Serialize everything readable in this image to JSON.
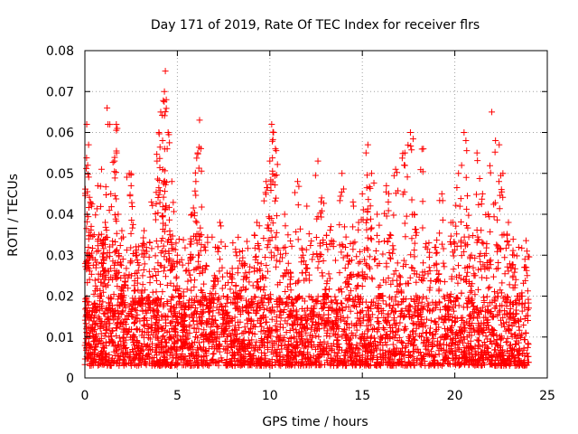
{
  "chart_data": {
    "type": "scatter",
    "title": "Day 171 of 2019, Rate Of TEC Index for receiver flrs",
    "xlabel": "GPS time / hours",
    "ylabel": "ROTI / TECUs",
    "xlim": [
      0,
      25
    ],
    "ylim": [
      0,
      0.08
    ],
    "xticks": [
      0,
      5,
      10,
      15,
      20,
      25
    ],
    "xtick_labels": [
      "0",
      "5",
      "10",
      "15",
      "20",
      "25"
    ],
    "yticks": [
      0,
      0.01,
      0.02,
      0.03,
      0.04,
      0.05,
      0.06,
      0.07,
      0.08
    ],
    "ytick_labels": [
      "0",
      "0.01",
      "0.02",
      "0.03",
      "0.04",
      "0.05",
      "0.06",
      "0.07",
      "0.08"
    ],
    "grid": true,
    "marker": "+",
    "color": "#ff0000",
    "series": [
      {
        "name": "ROTI",
        "points": [
          [
            0.05,
            0.015
          ],
          [
            0.1,
            0.062
          ],
          [
            0.15,
            0.052
          ],
          [
            0.2,
            0.057
          ],
          [
            0.25,
            0.03
          ],
          [
            0.3,
            0.043
          ],
          [
            0.4,
            0.012
          ],
          [
            0.5,
            0.035
          ],
          [
            0.6,
            0.008
          ],
          [
            0.7,
            0.047
          ],
          [
            0.8,
            0.02
          ],
          [
            0.9,
            0.051
          ],
          [
            1.0,
            0.028
          ],
          [
            1.1,
            0.038
          ],
          [
            1.2,
            0.066
          ],
          [
            1.25,
            0.062
          ],
          [
            1.3,
            0.01
          ],
          [
            1.4,
            0.045
          ],
          [
            1.5,
            0.015
          ],
          [
            1.6,
            0.053
          ],
          [
            1.7,
            0.062
          ],
          [
            1.75,
            0.061
          ],
          [
            1.8,
            0.04
          ],
          [
            1.9,
            0.02
          ],
          [
            2.0,
            0.036
          ],
          [
            2.1,
            0.012
          ],
          [
            2.2,
            0.025
          ],
          [
            2.4,
            0.05
          ],
          [
            2.5,
            0.047
          ],
          [
            2.6,
            0.01
          ],
          [
            2.8,
            0.03
          ],
          [
            3.0,
            0.018
          ],
          [
            3.2,
            0.036
          ],
          [
            3.4,
            0.008
          ],
          [
            3.6,
            0.043
          ],
          [
            3.8,
            0.015
          ],
          [
            3.9,
            0.053
          ],
          [
            4.0,
            0.06
          ],
          [
            4.1,
            0.065
          ],
          [
            4.2,
            0.058
          ],
          [
            4.3,
            0.07
          ],
          [
            4.35,
            0.075
          ],
          [
            4.4,
            0.068
          ],
          [
            4.5,
            0.06
          ],
          [
            4.6,
            0.035
          ],
          [
            4.7,
            0.048
          ],
          [
            4.8,
            0.012
          ],
          [
            5.0,
            0.03
          ],
          [
            5.2,
            0.02
          ],
          [
            5.4,
            0.008
          ],
          [
            5.6,
            0.028
          ],
          [
            5.8,
            0.04
          ],
          [
            6.0,
            0.048
          ],
          [
            6.1,
            0.055
          ],
          [
            6.2,
            0.063
          ],
          [
            6.3,
            0.015
          ],
          [
            6.5,
            0.032
          ],
          [
            6.7,
            0.01
          ],
          [
            7.0,
            0.025
          ],
          [
            7.3,
            0.038
          ],
          [
            7.6,
            0.012
          ],
          [
            8.0,
            0.033
          ],
          [
            8.3,
            0.02
          ],
          [
            8.6,
            0.028
          ],
          [
            9.0,
            0.014
          ],
          [
            9.3,
            0.038
          ],
          [
            9.6,
            0.025
          ],
          [
            9.8,
            0.048
          ],
          [
            10.0,
            0.053
          ],
          [
            10.1,
            0.062
          ],
          [
            10.2,
            0.06
          ],
          [
            10.3,
            0.056
          ],
          [
            10.5,
            0.018
          ],
          [
            10.8,
            0.04
          ],
          [
            11.0,
            0.028
          ],
          [
            11.3,
            0.01
          ],
          [
            11.5,
            0.048
          ],
          [
            11.8,
            0.03
          ],
          [
            12.0,
            0.042
          ],
          [
            12.3,
            0.015
          ],
          [
            12.6,
            0.053
          ],
          [
            12.8,
            0.044
          ],
          [
            13.0,
            0.02
          ],
          [
            13.3,
            0.037
          ],
          [
            13.6,
            0.012
          ],
          [
            13.9,
            0.05
          ],
          [
            14.2,
            0.03
          ],
          [
            14.5,
            0.043
          ],
          [
            14.8,
            0.038
          ],
          [
            15.0,
            0.045
          ],
          [
            15.2,
            0.055
          ],
          [
            15.3,
            0.057
          ],
          [
            15.5,
            0.05
          ],
          [
            15.8,
            0.04
          ],
          [
            16.0,
            0.02
          ],
          [
            16.3,
            0.047
          ],
          [
            16.5,
            0.035
          ],
          [
            16.8,
            0.051
          ],
          [
            17.0,
            0.025
          ],
          [
            17.3,
            0.055
          ],
          [
            17.6,
            0.06
          ],
          [
            17.8,
            0.04
          ],
          [
            18.0,
            0.015
          ],
          [
            18.3,
            0.056
          ],
          [
            18.6,
            0.033
          ],
          [
            19.0,
            0.028
          ],
          [
            19.3,
            0.045
          ],
          [
            19.6,
            0.012
          ],
          [
            19.9,
            0.038
          ],
          [
            20.2,
            0.05
          ],
          [
            20.5,
            0.06
          ],
          [
            20.6,
            0.058
          ],
          [
            20.9,
            0.03
          ],
          [
            21.2,
            0.055
          ],
          [
            21.5,
            0.045
          ],
          [
            21.8,
            0.04
          ],
          [
            22.0,
            0.065
          ],
          [
            22.2,
            0.058
          ],
          [
            22.4,
            0.057
          ],
          [
            22.6,
            0.05
          ],
          [
            22.9,
            0.038
          ],
          [
            23.2,
            0.03
          ],
          [
            23.5,
            0.02
          ],
          [
            23.9,
            0.031
          ]
        ],
        "baseline_band": {
          "x_range": [
            0,
            24
          ],
          "y_low": 0.003,
          "y_high": 0.02,
          "typical_upper": 0.035
        }
      }
    ]
  }
}
